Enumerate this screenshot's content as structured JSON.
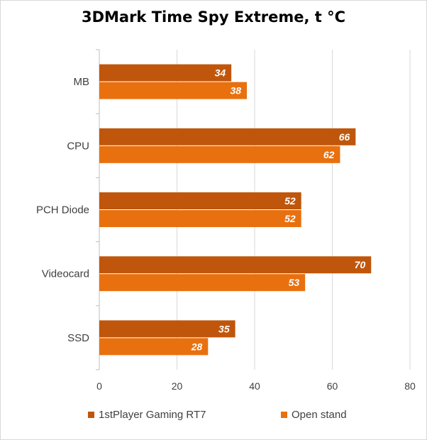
{
  "chart_data": {
    "type": "bar",
    "orientation": "horizontal",
    "title": "3DMark Time Spy Extreme, t °C",
    "categories": [
      "MB",
      "CPU",
      "PCH Diode",
      "Videocard",
      "SSD"
    ],
    "series": [
      {
        "name": "1stPlayer Gaming RT7",
        "color": "#c0560b",
        "values": [
          34,
          66,
          52,
          70,
          35
        ]
      },
      {
        "name": "Open stand",
        "color": "#e8700f",
        "values": [
          38,
          62,
          52,
          53,
          28
        ]
      }
    ],
    "xlim": [
      0,
      80
    ],
    "xticks": [
      0,
      20,
      40,
      60,
      80
    ],
    "grid": "vertical",
    "legend": "bottom"
  }
}
